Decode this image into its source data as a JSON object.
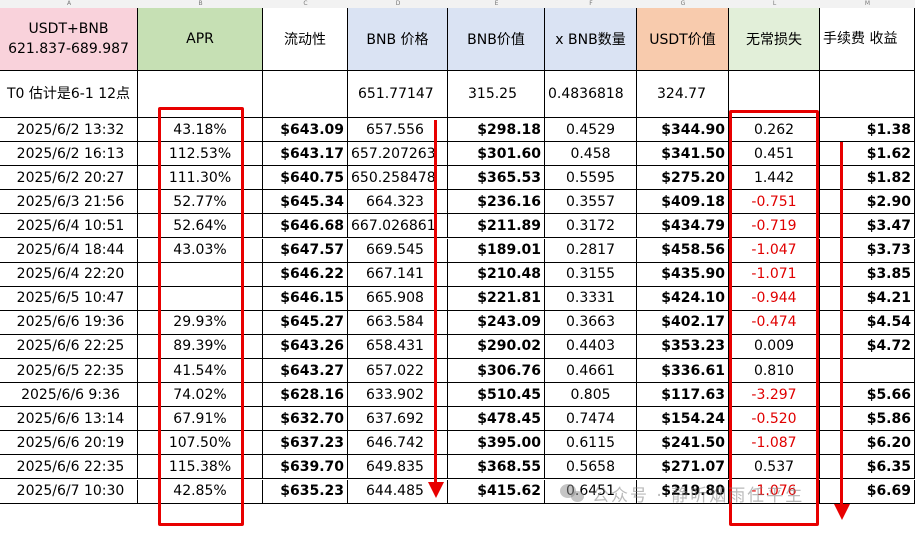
{
  "column_letters": [
    "A",
    "B",
    "C",
    "D",
    "E",
    "F",
    "G",
    "L",
    "M"
  ],
  "headers": [
    "USDT+BNB 621.837-689.987",
    "APR",
    "流动性",
    "BNB 价格",
    "BNB价值",
    "x BNB数量",
    "USDT价值",
    "无常损失",
    "手续费 收益"
  ],
  "t0_row": [
    "T0 估计是6-1 12点",
    "",
    "",
    "651.77147",
    "315.25",
    "0.4836818",
    "324.77",
    "",
    ""
  ],
  "rows": [
    [
      "2025/6/2 13:32",
      "43.18%",
      "$643.09",
      "657.556",
      "$298.18",
      "0.4529",
      "$344.90",
      "0.262",
      "$1.38"
    ],
    [
      "2025/6/2 16:13",
      "112.53%",
      "$643.17",
      "657.207263",
      "$301.60",
      "0.458",
      "$341.50",
      "0.451",
      "$1.62"
    ],
    [
      "2025/6/2 20:27",
      "111.30%",
      "$640.75",
      "650.258478",
      "$365.53",
      "0.5595",
      "$275.20",
      "1.442",
      "$1.82"
    ],
    [
      "2025/6/3 21:56",
      "52.77%",
      "$645.34",
      "664.323",
      "$236.16",
      "0.3557",
      "$409.18",
      "-0.751",
      "$2.90"
    ],
    [
      "2025/6/4 10:51",
      "52.64%",
      "$646.68",
      "667.026861",
      "$211.89",
      "0.3172",
      "$434.79",
      "-0.719",
      "$3.47"
    ],
    [
      "2025/6/4 18:44",
      "43.03%",
      "$647.57",
      "669.545",
      "$189.01",
      "0.2817",
      "$458.56",
      "-1.047",
      "$3.73"
    ],
    [
      "2025/6/4 22:20",
      "",
      "$646.22",
      "667.141",
      "$210.48",
      "0.3155",
      "$435.90",
      "-1.071",
      "$3.85"
    ],
    [
      "2025/6/5 10:47",
      "",
      "$646.15",
      "665.908",
      "$221.81",
      "0.3331",
      "$424.10",
      "-0.944",
      "$4.21"
    ],
    [
      "2025/6/6 19:36",
      "29.93%",
      "$645.27",
      "663.584",
      "$243.09",
      "0.3663",
      "$402.17",
      "-0.474",
      "$4.54"
    ],
    [
      "2025/6/6 22:25",
      "89.39%",
      "$643.26",
      "658.431",
      "$290.02",
      "0.4403",
      "$353.23",
      "0.009",
      "$4.72"
    ],
    [
      "2025/6/5 22:35",
      "41.54%",
      "$643.27",
      "657.022",
      "$306.76",
      "0.4661",
      "$336.61",
      "0.810",
      ""
    ],
    [
      "2025/6/6 9:36",
      "74.02%",
      "$628.16",
      "633.902",
      "$510.45",
      "0.805",
      "$117.63",
      "-3.297",
      "$5.66"
    ],
    [
      "2025/6/6 13:14",
      "67.91%",
      "$632.70",
      "637.692",
      "$478.45",
      "0.7474",
      "$154.24",
      "-0.520",
      "$5.86"
    ],
    [
      "2025/6/6 20:19",
      "107.50%",
      "$637.23",
      "646.742",
      "$395.00",
      "0.6115",
      "$241.50",
      "-1.087",
      "$6.20"
    ],
    [
      "2025/6/6 22:35",
      "115.38%",
      "$639.70",
      "649.835",
      "$368.55",
      "0.5658",
      "$271.07",
      "0.537",
      "$6.35"
    ],
    [
      "2025/6/7 10:30",
      "42.85%",
      "$635.23",
      "644.485",
      "$415.62",
      "0.6451",
      "$219.80",
      "-1.076",
      "$6.69"
    ]
  ],
  "watermark": "公众号 · 静听烟雨任平生",
  "colors": {
    "header_pink": "#f9d2db",
    "header_green": "#c6e0b4",
    "header_blue": "#dae3f3",
    "header_orange": "#f8cbad",
    "header_lightgreen": "#e2efd9",
    "annotation_red": "#e80000",
    "negative_red": "#e00000"
  }
}
